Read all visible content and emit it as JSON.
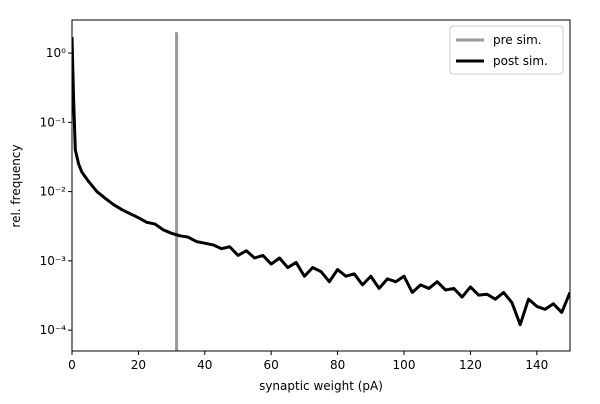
{
  "chart_data": {
    "type": "line",
    "xlabel": "synaptic weight (pA)",
    "ylabel": "rel. frequency",
    "xlim": [
      0,
      150
    ],
    "ylim": [
      5e-05,
      3
    ],
    "yscale": "log",
    "xticks": [
      0,
      20,
      40,
      60,
      80,
      100,
      120,
      140
    ],
    "yticks": [
      {
        "value": 0.0001,
        "label": "10⁻⁴"
      },
      {
        "value": 0.001,
        "label": "10⁻³"
      },
      {
        "value": 0.01,
        "label": "10⁻²"
      },
      {
        "value": 0.1,
        "label": "10⁻¹"
      },
      {
        "value": 1,
        "label": "10⁰"
      }
    ],
    "legend": "upper right",
    "series": [
      {
        "name": "pre sim.",
        "color": "#999999",
        "x": [
          31.5,
          31.5
        ],
        "values": [
          5e-05,
          2
        ]
      },
      {
        "name": "post sim.",
        "color": "#000000",
        "x": [
          0,
          0.5,
          1,
          2,
          3,
          5,
          7.5,
          10,
          12.5,
          15,
          17.5,
          20,
          22.5,
          25,
          27.5,
          30,
          32.5,
          35,
          37.5,
          40,
          42.5,
          45,
          47.5,
          50,
          52.5,
          55,
          57.5,
          60,
          62.5,
          65,
          67.5,
          70,
          72.5,
          75,
          77.5,
          80,
          82.5,
          85,
          87.5,
          90,
          92.5,
          95,
          97.5,
          100,
          102.5,
          105,
          107.5,
          110,
          112.5,
          115,
          117.5,
          120,
          122.5,
          125,
          127.5,
          130,
          132.5,
          135,
          137.5,
          140,
          142.5,
          145,
          147.5,
          150
        ],
        "values": [
          1.7,
          0.2,
          0.04,
          0.025,
          0.019,
          0.014,
          0.01,
          0.008,
          0.0065,
          0.0055,
          0.0048,
          0.0042,
          0.0036,
          0.0034,
          0.0028,
          0.0025,
          0.0023,
          0.0022,
          0.0019,
          0.0018,
          0.0017,
          0.0015,
          0.0016,
          0.0012,
          0.0014,
          0.0011,
          0.0012,
          0.0009,
          0.0011,
          0.0008,
          0.00095,
          0.0006,
          0.0008,
          0.0007,
          0.0005,
          0.00075,
          0.0006,
          0.00065,
          0.00045,
          0.0006,
          0.0004,
          0.00055,
          0.0005,
          0.0006,
          0.00035,
          0.00045,
          0.0004,
          0.0005,
          0.00038,
          0.0004,
          0.0003,
          0.00042,
          0.00032,
          0.00033,
          0.00028,
          0.00035,
          0.00025,
          0.00012,
          0.00028,
          0.00022,
          0.0002,
          0.00024,
          0.00018,
          0.00035
        ]
      }
    ]
  }
}
